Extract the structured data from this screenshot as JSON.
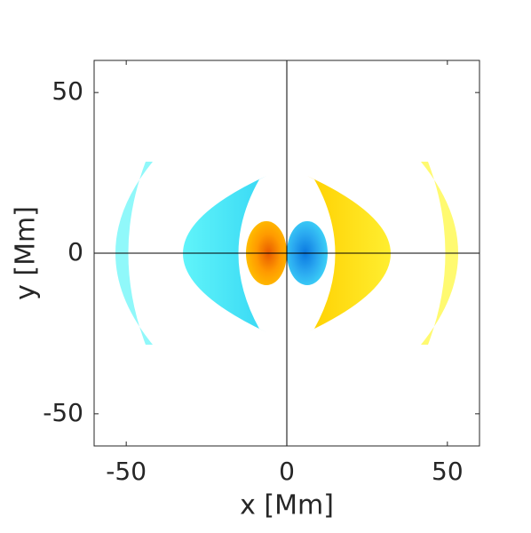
{
  "chart_data": {
    "type": "image",
    "xlabel": "x [Mm]",
    "ylabel": "y [Mm]",
    "xlim": [
      -60,
      60
    ],
    "ylim": [
      -60,
      60
    ],
    "xticks": [
      -50,
      0,
      50
    ],
    "yticks": [
      -50,
      0,
      50
    ],
    "zero_lines": true
  }
}
